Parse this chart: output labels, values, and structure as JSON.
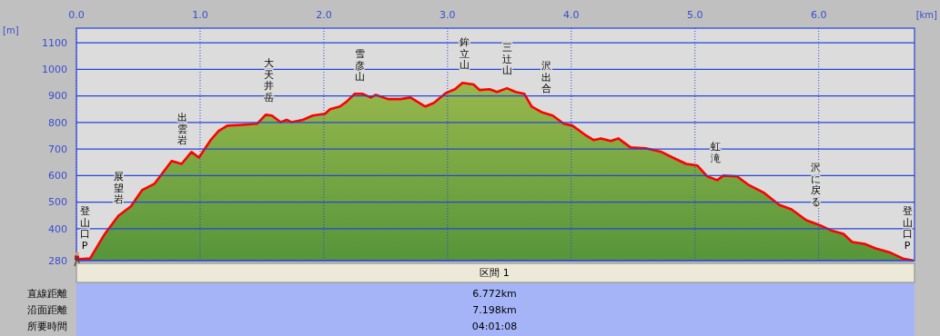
{
  "chart_data": {
    "type": "area",
    "xlabel": "[km]",
    "ylabel": "[m]",
    "x": [
      0.0,
      0.11,
      0.23,
      0.34,
      0.44,
      0.53,
      0.63,
      0.77,
      0.85,
      0.93,
      0.99,
      1.09,
      1.15,
      1.22,
      1.34,
      1.46,
      1.53,
      1.58,
      1.65,
      1.7,
      1.74,
      1.83,
      1.91,
      2.01,
      2.05,
      2.13,
      2.18,
      2.25,
      2.31,
      2.38,
      2.42,
      2.52,
      2.62,
      2.7,
      2.82,
      2.89,
      2.99,
      3.06,
      3.12,
      3.21,
      3.26,
      3.34,
      3.4,
      3.48,
      3.55,
      3.62,
      3.68,
      3.76,
      3.85,
      3.94,
      4.01,
      4.11,
      4.18,
      4.24,
      4.32,
      4.38,
      4.48,
      4.6,
      4.73,
      4.82,
      4.93,
      5.02,
      5.1,
      5.18,
      5.23,
      5.34,
      5.43,
      5.56,
      5.68,
      5.78,
      5.9,
      6.0,
      6.1,
      6.2,
      6.27,
      6.37,
      6.46,
      6.57,
      6.68,
      6.76
    ],
    "series": [
      {
        "color": "#ff0000",
        "values": [
          285,
          288,
          381,
          449,
          484,
          545,
          569,
          655,
          644,
          689,
          668,
          737,
          768,
          788,
          791,
          795,
          829,
          826,
          801,
          810,
          801,
          810,
          826,
          833,
          850,
          860,
          877,
          908,
          908,
          894,
          904,
          888,
          888,
          894,
          860,
          874,
          912,
          925,
          949,
          943,
          922,
          925,
          915,
          929,
          915,
          908,
          860,
          839,
          826,
          795,
          788,
          754,
          734,
          740,
          730,
          740,
          706,
          703,
          689,
          668,
          644,
          638,
          597,
          583,
          600,
          597,
          566,
          535,
          490,
          473,
          432,
          415,
          394,
          381,
          350,
          343,
          326,
          312,
          288,
          281
        ]
      }
    ],
    "xlim": [
      0,
      6.76
    ],
    "xticks": [
      {
        "value": 0,
        "label": "0.0"
      },
      {
        "value": 1,
        "label": "1.0"
      },
      {
        "value": 2,
        "label": "2.0"
      },
      {
        "value": 3,
        "label": "3.0"
      },
      {
        "value": 4,
        "label": "4.0"
      },
      {
        "value": 5,
        "label": "5.0"
      },
      {
        "value": 6,
        "label": "6.0"
      }
    ],
    "ylim": [
      280,
      1155
    ],
    "yticks": [
      280,
      400,
      500,
      600,
      700,
      800,
      900,
      1000,
      1100
    ],
    "grid": true,
    "annotations": [
      "登山口P",
      "展望岩",
      "出雲岩",
      "大天井岳",
      "雪彦山",
      "鉾立山",
      "三辻山",
      "沢出合",
      "虹滝",
      "沢に戻る",
      "登山口P",
      "区間 1",
      "直線距離",
      "6.772km",
      "沿面距離",
      "7.198km",
      "所要時間",
      "04:01:08"
    ]
  }
}
